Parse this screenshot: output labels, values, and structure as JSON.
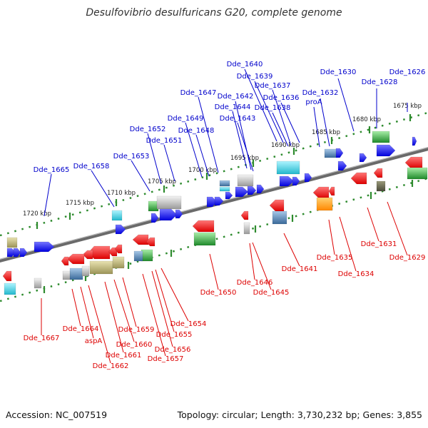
{
  "title": "Desulfovibrio desulfuricans G20, complete genome",
  "footer": {
    "accession": "Accession: NC_007519",
    "summary": "Topology: circular; Length: 3,730,232 bp; Genes: 3,855"
  },
  "colors": {
    "forward_label": "#0000cc",
    "reverse_label": "#dd0000",
    "backbone": "#888888",
    "ticks": "#2e8b2e",
    "gene_blue": "#0000ee",
    "gene_red": "#ee0000",
    "gene_cyan": "#33ccdd",
    "gene_green": "#22aa33",
    "gene_gray": "#aaaaaa",
    "gene_olive": "#b8b070",
    "gene_steel": "#4a7fb0"
  },
  "kbp_labels": [
    "1675 kbp",
    "1680 kbp",
    "1685 kbp",
    "1690 kbp",
    "1695 kbp",
    "1700 kbp",
    "1705 kbp",
    "1710 kbp",
    "1715 kbp",
    "1720 kbp"
  ],
  "forward_labels": [
    "Dde_1626",
    "Dde_1628",
    "Dde_1630",
    "Dde_1632",
    "proA",
    "Dde_1636",
    "Dde_1637",
    "Dde_1638",
    "Dde_1639",
    "Dde_1640",
    "Dde_1642",
    "Dde_1643",
    "Dde_1644",
    "Dde_1647",
    "Dde_1648",
    "Dde_1649",
    "Dde_1651",
    "Dde_1652",
    "Dde_1653",
    "Dde_1658",
    "Dde_1665"
  ],
  "reverse_labels": [
    "Dde_1629",
    "Dde_1631",
    "Dde_1634",
    "Dde_1635",
    "Dde_1641",
    "Dde_1645",
    "Dde_1646",
    "Dde_1650",
    "Dde_1654",
    "Dde_1655",
    "Dde_1656",
    "Dde_1657",
    "Dde_1659",
    "Dde_1660",
    "Dde_1661",
    "Dde_1662",
    "aspA",
    "Dde_1664",
    "Dde_1667"
  ]
}
